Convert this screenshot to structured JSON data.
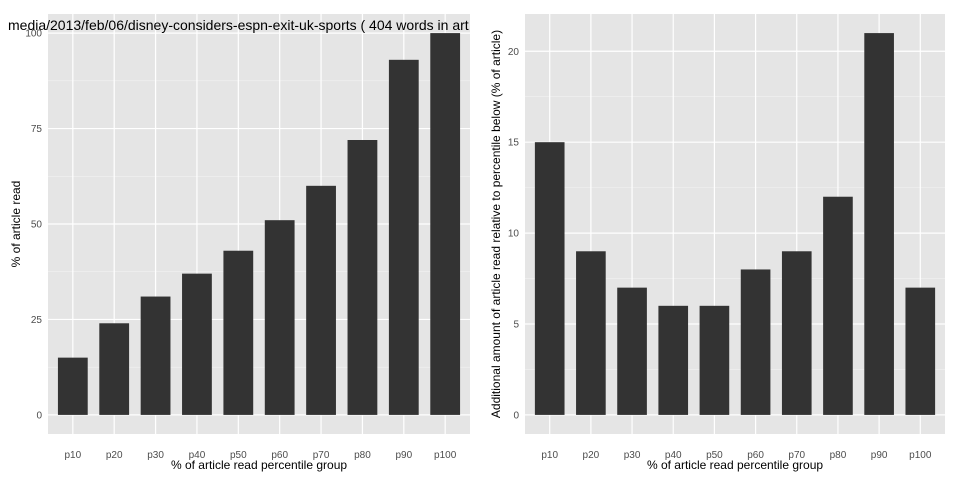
{
  "chart_data": [
    {
      "type": "bar",
      "title": "media/2013/feb/06/disney-considers-espn-exit-uk-sports ( 404 words in art",
      "xlabel": "% of article read percentile group",
      "ylabel": "% of article read",
      "categories": [
        "p10",
        "p20",
        "p30",
        "p40",
        "p50",
        "p60",
        "p70",
        "p80",
        "p90",
        "p100"
      ],
      "values": [
        15,
        24,
        31,
        37,
        43,
        51,
        60,
        72,
        93,
        100
      ],
      "ylim": [
        -5,
        105
      ],
      "yticks": [
        0,
        25,
        50,
        75,
        100
      ],
      "grid": true,
      "bar_color": "#333333",
      "panel_bg": "#e5e5e5"
    },
    {
      "type": "bar",
      "title": "",
      "xlabel": "% of article read percentile group",
      "ylabel": "Additional amount of article read relative to percentile below (% of article)",
      "categories": [
        "p10",
        "p20",
        "p30",
        "p40",
        "p50",
        "p60",
        "p70",
        "p80",
        "p90",
        "p100"
      ],
      "values": [
        15,
        9,
        7,
        6,
        6,
        8,
        9,
        12,
        21,
        7
      ],
      "ylim": [
        -1.05,
        22.05
      ],
      "yticks": [
        0,
        5,
        10,
        15,
        20
      ],
      "grid": true,
      "bar_color": "#333333",
      "panel_bg": "#e5e5e5"
    }
  ]
}
